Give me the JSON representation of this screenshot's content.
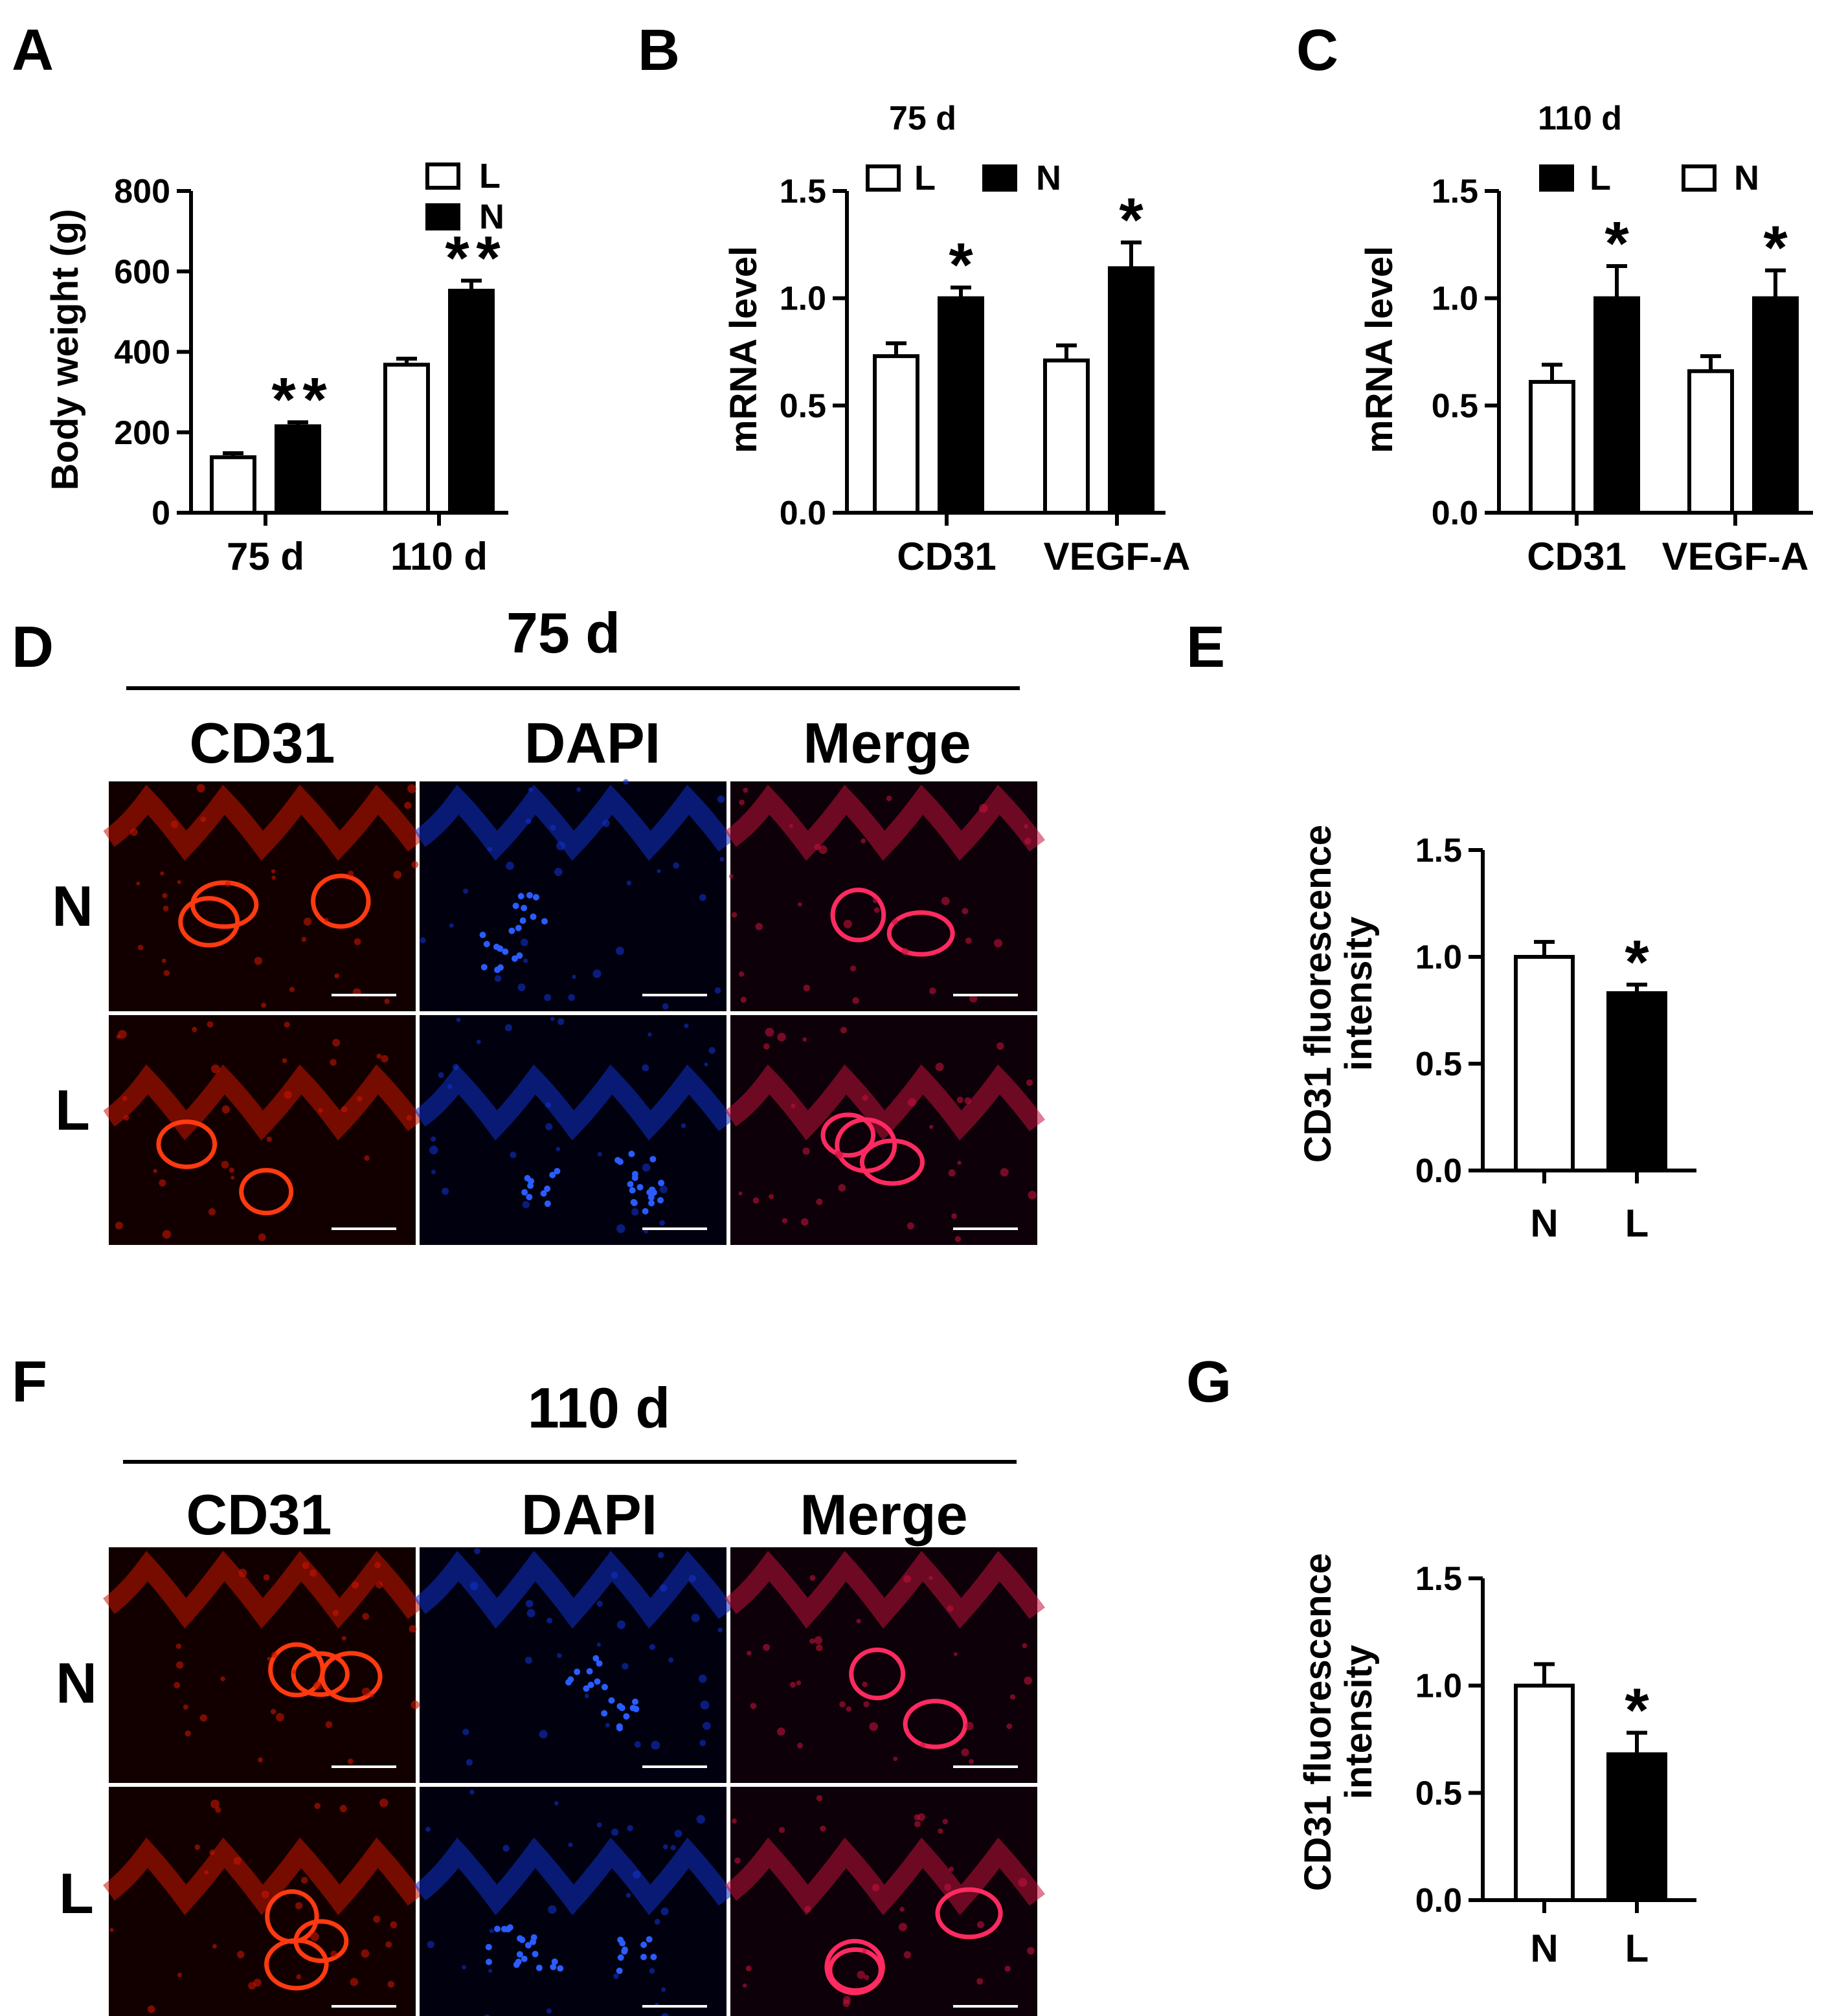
{
  "panel_letters": {
    "A": "A",
    "B": "B",
    "C": "C",
    "D": "D",
    "E": "E",
    "F": "F",
    "G": "G"
  },
  "colors": {
    "L_fill": "#ffffff",
    "N_fill": "#000000",
    "stroke": "#000000"
  },
  "chart_data": [
    {
      "id": "A",
      "type": "bar",
      "title": "",
      "ylabel": "Body weight (g)",
      "ylim": [
        0,
        800
      ],
      "yticks": [
        "0",
        "200",
        "400",
        "600",
        "800"
      ],
      "categories": [
        "75 d",
        "110 d"
      ],
      "legend": [
        {
          "label": "L",
          "fill": "white"
        },
        {
          "label": "N",
          "fill": "black"
        }
      ],
      "series": [
        {
          "name": "L",
          "fill": "white",
          "values": [
            138,
            368
          ],
          "errors": [
            10,
            15
          ]
        },
        {
          "name": "N",
          "fill": "black",
          "values": [
            215,
            552
          ],
          "errors": [
            10,
            25
          ]
        }
      ],
      "significance": [
        {
          "series": 1,
          "category": 0,
          "mark": "**"
        },
        {
          "series": 1,
          "category": 1,
          "mark": "**"
        }
      ]
    },
    {
      "id": "B",
      "type": "bar",
      "title": "75 d",
      "ylabel": "mRNA level",
      "ylim": [
        0,
        1.5
      ],
      "yticks": [
        "0.0",
        "0.5",
        "1.0",
        "1.5"
      ],
      "categories": [
        "CD31",
        "VEGF-A"
      ],
      "legend": [
        {
          "label": "L",
          "fill": "white"
        },
        {
          "label": "N",
          "fill": "black"
        }
      ],
      "series": [
        {
          "name": "L",
          "fill": "white",
          "values": [
            0.73,
            0.71
          ],
          "errors": [
            0.06,
            0.07
          ]
        },
        {
          "name": "N",
          "fill": "black",
          "values": [
            1.0,
            1.14
          ],
          "errors": [
            0.05,
            0.12
          ]
        }
      ],
      "significance": [
        {
          "series": 1,
          "category": 0,
          "mark": "*"
        },
        {
          "series": 1,
          "category": 1,
          "mark": "*"
        }
      ]
    },
    {
      "id": "C",
      "type": "bar",
      "title": "110 d",
      "ylabel": "mRNA level",
      "ylim": [
        0,
        1.5
      ],
      "yticks": [
        "0.0",
        "0.5",
        "1.0",
        "1.5"
      ],
      "categories": [
        "CD31",
        "VEGF-A"
      ],
      "legend": [
        {
          "label": "L",
          "fill": "black"
        },
        {
          "label": "N",
          "fill": "white"
        }
      ],
      "series": [
        {
          "name": "N",
          "fill": "white",
          "values": [
            0.61,
            0.66
          ],
          "errors": [
            0.08,
            0.07
          ]
        },
        {
          "name": "L",
          "fill": "black",
          "values": [
            1.0,
            1.0
          ],
          "errors": [
            0.15,
            0.13
          ]
        }
      ],
      "significance": [
        {
          "series": 1,
          "category": 0,
          "mark": "*"
        },
        {
          "series": 1,
          "category": 1,
          "mark": "*"
        }
      ]
    },
    {
      "id": "E",
      "type": "bar",
      "title": "",
      "ylabel": [
        "CD31 fluorescence",
        "intensity"
      ],
      "ylim": [
        0,
        1.5
      ],
      "yticks": [
        "0.0",
        "0.5",
        "1.0",
        "1.5"
      ],
      "categories": [
        "N",
        "L"
      ],
      "series": [
        {
          "fills": [
            "white",
            "black"
          ],
          "values": [
            1.0,
            0.83
          ],
          "errors": [
            0.07,
            0.04
          ]
        }
      ],
      "significance": [
        {
          "category": 1,
          "mark": "*"
        }
      ]
    },
    {
      "id": "G",
      "type": "bar",
      "title": "",
      "ylabel": [
        "CD31 fluorescence",
        "intensity"
      ],
      "ylim": [
        0,
        1.5
      ],
      "yticks": [
        "0.0",
        "0.5",
        "1.0",
        "1.5"
      ],
      "categories": [
        "N",
        "L"
      ],
      "series": [
        {
          "fills": [
            "white",
            "black"
          ],
          "values": [
            1.0,
            0.68
          ],
          "errors": [
            0.1,
            0.1
          ]
        }
      ],
      "significance": [
        {
          "category": 1,
          "mark": "*"
        }
      ]
    }
  ],
  "micrographs": [
    {
      "id": "D",
      "title": "75 d",
      "columns": [
        "CD31",
        "DAPI",
        "Merge"
      ],
      "rows": [
        "N",
        "L"
      ]
    },
    {
      "id": "F",
      "title": "110 d",
      "columns": [
        "CD31",
        "DAPI",
        "Merge"
      ],
      "rows": [
        "N",
        "L"
      ]
    }
  ]
}
